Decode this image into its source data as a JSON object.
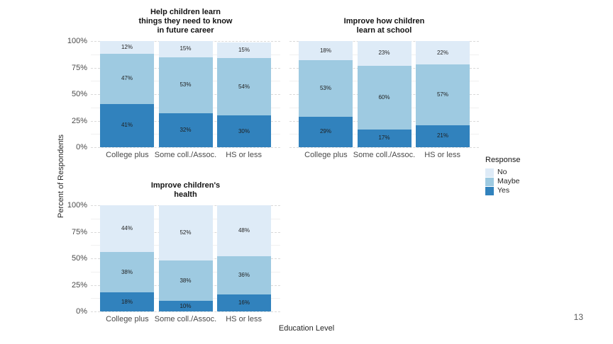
{
  "page": {
    "number": "13"
  },
  "chart_data": {
    "type": "bar",
    "subtype": "stacked-percent-columns",
    "categories": [
      "College plus",
      "Some coll./Assoc.",
      "HS or less"
    ],
    "stack_order_bottom_to_top": [
      "Yes",
      "Maybe",
      "No"
    ],
    "facets": [
      {
        "title_lines": [
          "Help children learn",
          "things they need to know",
          "in future career"
        ],
        "series": [
          {
            "name": "No",
            "values": [
              12,
              15,
              15
            ]
          },
          {
            "name": "Maybe",
            "values": [
              47,
              53,
              54
            ]
          },
          {
            "name": "Yes",
            "values": [
              41,
              32,
              30
            ]
          }
        ]
      },
      {
        "title_lines": [
          "Improve how children",
          "learn at school"
        ],
        "series": [
          {
            "name": "No",
            "values": [
              18,
              23,
              22
            ]
          },
          {
            "name": "Maybe",
            "values": [
              53,
              60,
              57
            ]
          },
          {
            "name": "Yes",
            "values": [
              29,
              17,
              21
            ]
          }
        ]
      },
      {
        "title_lines": [
          "Improve children's",
          "health"
        ],
        "series": [
          {
            "name": "No",
            "values": [
              44,
              52,
              48
            ]
          },
          {
            "name": "Maybe",
            "values": [
              38,
              38,
              36
            ]
          },
          {
            "name": "Yes",
            "values": [
              18,
              10,
              16
            ]
          }
        ]
      }
    ],
    "colors": {
      "No": "#DEEBF7",
      "Maybe": "#9ECAE1",
      "Yes": "#3182BD"
    },
    "legend": {
      "title": "Response",
      "entries": [
        "No",
        "Maybe",
        "Yes"
      ],
      "position": "right"
    },
    "xlabel": "Education Level",
    "ylabel": "Percent of Respondents",
    "yticks": [
      100,
      75,
      50,
      25,
      0
    ],
    "ytick_suffix": "%",
    "ylim": [
      0,
      100
    ],
    "grid": "major-dashed-minor-light",
    "label_suffix": "%"
  }
}
